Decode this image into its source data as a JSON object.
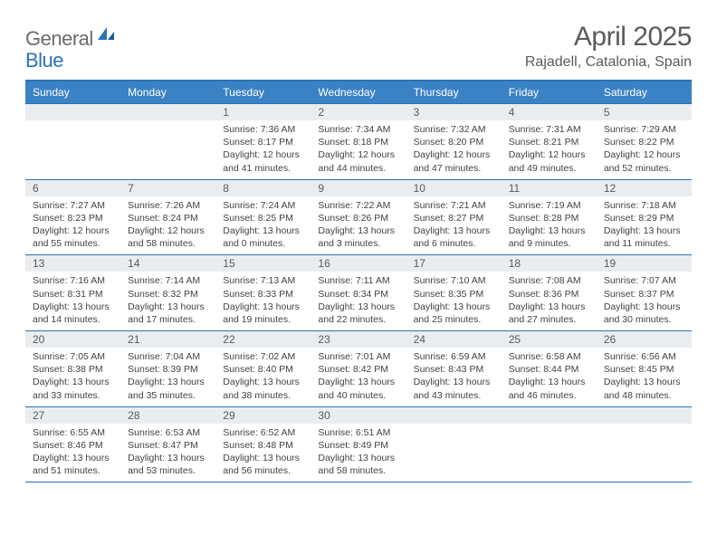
{
  "logo": {
    "text1": "General",
    "text2": "Blue"
  },
  "title": "April 2025",
  "location": "Rajadell, Catalonia, Spain",
  "header_bg": "#3b82c4",
  "border_color": "#2b72b8",
  "daynum_bg": "#e9edf0",
  "text_color": "#424242",
  "days_of_week": [
    "Sunday",
    "Monday",
    "Tuesday",
    "Wednesday",
    "Thursday",
    "Friday",
    "Saturday"
  ],
  "weeks": [
    [
      null,
      null,
      {
        "n": "1",
        "sr": "Sunrise: 7:36 AM",
        "ss": "Sunset: 8:17 PM",
        "d1": "Daylight: 12 hours",
        "d2": "and 41 minutes."
      },
      {
        "n": "2",
        "sr": "Sunrise: 7:34 AM",
        "ss": "Sunset: 8:18 PM",
        "d1": "Daylight: 12 hours",
        "d2": "and 44 minutes."
      },
      {
        "n": "3",
        "sr": "Sunrise: 7:32 AM",
        "ss": "Sunset: 8:20 PM",
        "d1": "Daylight: 12 hours",
        "d2": "and 47 minutes."
      },
      {
        "n": "4",
        "sr": "Sunrise: 7:31 AM",
        "ss": "Sunset: 8:21 PM",
        "d1": "Daylight: 12 hours",
        "d2": "and 49 minutes."
      },
      {
        "n": "5",
        "sr": "Sunrise: 7:29 AM",
        "ss": "Sunset: 8:22 PM",
        "d1": "Daylight: 12 hours",
        "d2": "and 52 minutes."
      }
    ],
    [
      {
        "n": "6",
        "sr": "Sunrise: 7:27 AM",
        "ss": "Sunset: 8:23 PM",
        "d1": "Daylight: 12 hours",
        "d2": "and 55 minutes."
      },
      {
        "n": "7",
        "sr": "Sunrise: 7:26 AM",
        "ss": "Sunset: 8:24 PM",
        "d1": "Daylight: 12 hours",
        "d2": "and 58 minutes."
      },
      {
        "n": "8",
        "sr": "Sunrise: 7:24 AM",
        "ss": "Sunset: 8:25 PM",
        "d1": "Daylight: 13 hours",
        "d2": "and 0 minutes."
      },
      {
        "n": "9",
        "sr": "Sunrise: 7:22 AM",
        "ss": "Sunset: 8:26 PM",
        "d1": "Daylight: 13 hours",
        "d2": "and 3 minutes."
      },
      {
        "n": "10",
        "sr": "Sunrise: 7:21 AM",
        "ss": "Sunset: 8:27 PM",
        "d1": "Daylight: 13 hours",
        "d2": "and 6 minutes."
      },
      {
        "n": "11",
        "sr": "Sunrise: 7:19 AM",
        "ss": "Sunset: 8:28 PM",
        "d1": "Daylight: 13 hours",
        "d2": "and 9 minutes."
      },
      {
        "n": "12",
        "sr": "Sunrise: 7:18 AM",
        "ss": "Sunset: 8:29 PM",
        "d1": "Daylight: 13 hours",
        "d2": "and 11 minutes."
      }
    ],
    [
      {
        "n": "13",
        "sr": "Sunrise: 7:16 AM",
        "ss": "Sunset: 8:31 PM",
        "d1": "Daylight: 13 hours",
        "d2": "and 14 minutes."
      },
      {
        "n": "14",
        "sr": "Sunrise: 7:14 AM",
        "ss": "Sunset: 8:32 PM",
        "d1": "Daylight: 13 hours",
        "d2": "and 17 minutes."
      },
      {
        "n": "15",
        "sr": "Sunrise: 7:13 AM",
        "ss": "Sunset: 8:33 PM",
        "d1": "Daylight: 13 hours",
        "d2": "and 19 minutes."
      },
      {
        "n": "16",
        "sr": "Sunrise: 7:11 AM",
        "ss": "Sunset: 8:34 PM",
        "d1": "Daylight: 13 hours",
        "d2": "and 22 minutes."
      },
      {
        "n": "17",
        "sr": "Sunrise: 7:10 AM",
        "ss": "Sunset: 8:35 PM",
        "d1": "Daylight: 13 hours",
        "d2": "and 25 minutes."
      },
      {
        "n": "18",
        "sr": "Sunrise: 7:08 AM",
        "ss": "Sunset: 8:36 PM",
        "d1": "Daylight: 13 hours",
        "d2": "and 27 minutes."
      },
      {
        "n": "19",
        "sr": "Sunrise: 7:07 AM",
        "ss": "Sunset: 8:37 PM",
        "d1": "Daylight: 13 hours",
        "d2": "and 30 minutes."
      }
    ],
    [
      {
        "n": "20",
        "sr": "Sunrise: 7:05 AM",
        "ss": "Sunset: 8:38 PM",
        "d1": "Daylight: 13 hours",
        "d2": "and 33 minutes."
      },
      {
        "n": "21",
        "sr": "Sunrise: 7:04 AM",
        "ss": "Sunset: 8:39 PM",
        "d1": "Daylight: 13 hours",
        "d2": "and 35 minutes."
      },
      {
        "n": "22",
        "sr": "Sunrise: 7:02 AM",
        "ss": "Sunset: 8:40 PM",
        "d1": "Daylight: 13 hours",
        "d2": "and 38 minutes."
      },
      {
        "n": "23",
        "sr": "Sunrise: 7:01 AM",
        "ss": "Sunset: 8:42 PM",
        "d1": "Daylight: 13 hours",
        "d2": "and 40 minutes."
      },
      {
        "n": "24",
        "sr": "Sunrise: 6:59 AM",
        "ss": "Sunset: 8:43 PM",
        "d1": "Daylight: 13 hours",
        "d2": "and 43 minutes."
      },
      {
        "n": "25",
        "sr": "Sunrise: 6:58 AM",
        "ss": "Sunset: 8:44 PM",
        "d1": "Daylight: 13 hours",
        "d2": "and 46 minutes."
      },
      {
        "n": "26",
        "sr": "Sunrise: 6:56 AM",
        "ss": "Sunset: 8:45 PM",
        "d1": "Daylight: 13 hours",
        "d2": "and 48 minutes."
      }
    ],
    [
      {
        "n": "27",
        "sr": "Sunrise: 6:55 AM",
        "ss": "Sunset: 8:46 PM",
        "d1": "Daylight: 13 hours",
        "d2": "and 51 minutes."
      },
      {
        "n": "28",
        "sr": "Sunrise: 6:53 AM",
        "ss": "Sunset: 8:47 PM",
        "d1": "Daylight: 13 hours",
        "d2": "and 53 minutes."
      },
      {
        "n": "29",
        "sr": "Sunrise: 6:52 AM",
        "ss": "Sunset: 8:48 PM",
        "d1": "Daylight: 13 hours",
        "d2": "and 56 minutes."
      },
      {
        "n": "30",
        "sr": "Sunrise: 6:51 AM",
        "ss": "Sunset: 8:49 PM",
        "d1": "Daylight: 13 hours",
        "d2": "and 58 minutes."
      },
      null,
      null,
      null
    ]
  ]
}
